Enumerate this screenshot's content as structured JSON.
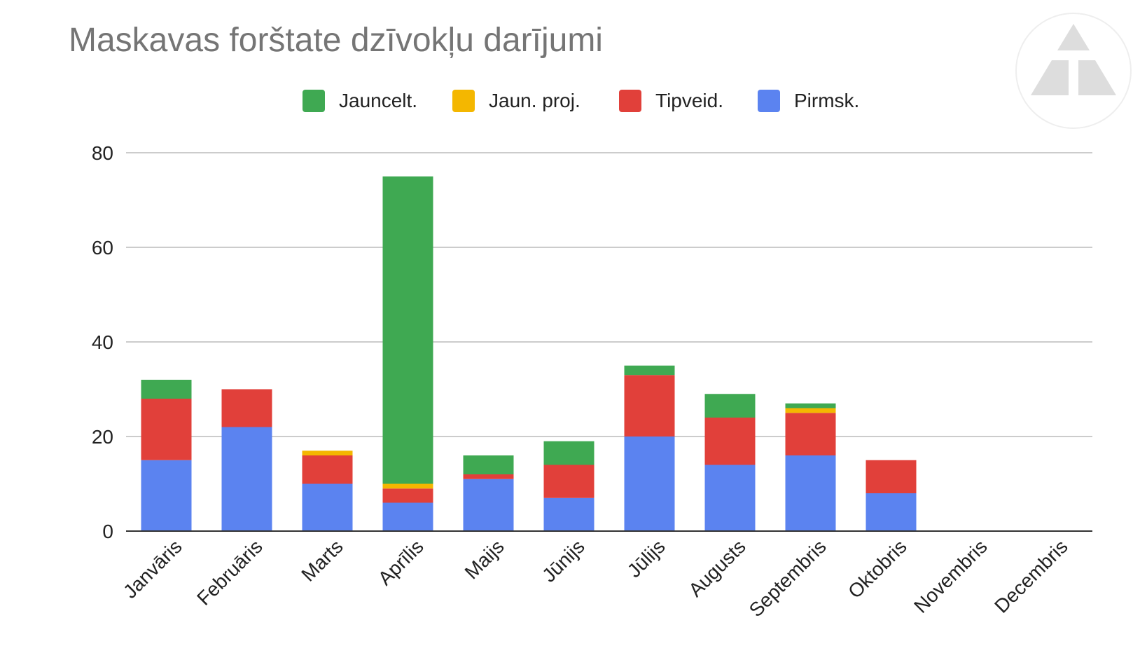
{
  "chart_data": {
    "type": "bar",
    "stacked": true,
    "title": "Maskavas forštate dzīvokļu darījumi",
    "categories": [
      "Janvāris",
      "Februāris",
      "Marts",
      "Aprīlis",
      "Maijs",
      "Jūnijs",
      "Jūlijs",
      "Augusts",
      "Septembris",
      "Oktobris",
      "Novembris",
      "Decembris"
    ],
    "series": [
      {
        "name": "Pirmsk.",
        "color": "#5b83f0",
        "values": [
          15,
          22,
          10,
          6,
          11,
          7,
          20,
          14,
          16,
          8,
          0,
          0
        ]
      },
      {
        "name": "Tipveid.",
        "color": "#e1403a",
        "values": [
          13,
          8,
          6,
          3,
          1,
          7,
          13,
          10,
          9,
          7,
          0,
          0
        ]
      },
      {
        "name": "Jaun. proj.",
        "color": "#f4b700",
        "values": [
          0,
          0,
          1,
          1,
          0,
          0,
          0,
          0,
          1,
          0,
          0,
          0
        ]
      },
      {
        "name": "Jauncelt.",
        "color": "#3fa952",
        "values": [
          4,
          0,
          0,
          65,
          4,
          5,
          2,
          5,
          1,
          0,
          0,
          0
        ]
      }
    ],
    "legend_order": [
      "Jauncelt.",
      "Jaun. proj.",
      "Tipveid.",
      "Pirmsk."
    ],
    "legend_position": "top",
    "ylim": [
      0,
      80
    ],
    "yticks": [
      "0",
      "20",
      "40",
      "60",
      "80"
    ],
    "grid": true,
    "xlabel": "",
    "ylabel": ""
  }
}
